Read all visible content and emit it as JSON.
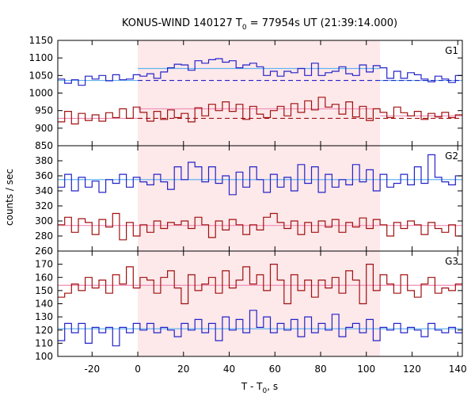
{
  "chart_data": {
    "type": "line",
    "title": "KONUS-WIND 140127 T",
    "title_sub": "0",
    "title_rest": " = 77954s UT (21:39:14.000)",
    "xlabel": "T - T",
    "xlabel_sub": "0",
    "xlabel_rest": ", s",
    "ylabel": "counts / sec",
    "xlim": [
      -35,
      142
    ],
    "xticks": [
      -20,
      0,
      20,
      40,
      60,
      80,
      100,
      120,
      140
    ],
    "xtick_labels": [
      "-20",
      "0",
      "20",
      "40",
      "60",
      "80",
      "100",
      "120",
      "140"
    ],
    "interval": [
      0,
      106
    ],
    "colors": {
      "blue": "#2323c8",
      "red": "#a01010",
      "light_blue": "#64b4f0",
      "pink": "#f08cb4",
      "shade": "#fde8ea"
    },
    "panels": [
      {
        "label": "G1",
        "ylim": [
          850,
          1150
        ],
        "yticks": [
          850,
          900,
          950,
          1000,
          1050,
          1100,
          1150
        ],
        "ytick_labels": [
          "850",
          "900",
          "950",
          "1000",
          "1050",
          "1100",
          "1150"
        ],
        "series": [
          {
            "color": "blue",
            "step": 3,
            "start": -35,
            "values": [
              1040,
              1028,
              1038,
              1022,
              1048,
              1040,
              1050,
              1035,
              1052,
              1038,
              1040,
              1052,
              1048,
              1055,
              1042,
              1060,
              1072,
              1082,
              1080,
              1065,
              1092,
              1085,
              1095,
              1098,
              1088,
              1092,
              1072,
              1080,
              1085,
              1075,
              1050,
              1062,
              1048,
              1062,
              1058,
              1070,
              1050,
              1085,
              1050,
              1058,
              1062,
              1075,
              1055,
              1050,
              1080,
              1060,
              1078,
              1072,
              1042,
              1062,
              1042,
              1058,
              1052,
              1040,
              1032,
              1048,
              1040,
              1030,
              1050,
              1035
            ]
          },
          {
            "color": "red",
            "step": 3,
            "start": -35,
            "values": [
              918,
              948,
              912,
              942,
              922,
              938,
              920,
              944,
              930,
              955,
              928,
              960,
              945,
              920,
              948,
              925,
              952,
              930,
              942,
              918,
              958,
              935,
              968,
              950,
              975,
              948,
              968,
              925,
              962,
              940,
              930,
              950,
              962,
              935,
              970,
              945,
              978,
              952,
              988,
              960,
              968,
              940,
              975,
              932,
              962,
              922,
              955,
              945,
              930,
              960,
              944,
              935,
              948,
              925,
              942,
              932,
              945,
              930,
              938,
              925
            ]
          }
        ],
        "background_levels": [
          {
            "color": "light_blue",
            "style": "solid",
            "x": [
              -35,
              0
            ],
            "y": 1036
          },
          {
            "color": "light_blue",
            "style": "solid",
            "x": [
              0,
              106
            ],
            "y": 1070
          },
          {
            "color": "light_blue",
            "style": "solid",
            "x": [
              106,
              142
            ],
            "y": 1036
          },
          {
            "color": "blue",
            "style": "dashed",
            "x": [
              0,
              142
            ],
            "y": 1036
          },
          {
            "color": "pink",
            "style": "solid",
            "x": [
              -35,
              0
            ],
            "y": 928
          },
          {
            "color": "pink",
            "style": "solid",
            "x": [
              0,
              106
            ],
            "y": 955
          },
          {
            "color": "pink",
            "style": "solid",
            "x": [
              106,
              142
            ],
            "y": 935
          },
          {
            "color": "red",
            "style": "dashed",
            "x": [
              0,
              142
            ],
            "y": 928
          }
        ]
      },
      {
        "label": "G2",
        "ylim": [
          260,
          400
        ],
        "yticks": [
          260,
          280,
          300,
          320,
          340,
          360,
          380
        ],
        "ytick_labels": [
          "260",
          "280",
          "300",
          "320",
          "340",
          "360",
          "380"
        ],
        "series": [
          {
            "color": "blue",
            "step": 3,
            "start": -35,
            "values": [
              345,
              362,
              340,
              358,
              345,
              353,
              338,
              355,
              350,
              362,
              345,
              358,
              352,
              348,
              362,
              352,
              342,
              372,
              355,
              378,
              372,
              352,
              372,
              350,
              360,
              335,
              365,
              345,
              372,
              355,
              338,
              362,
              345,
              358,
              340,
              375,
              350,
              372,
              338,
              362,
              345,
              355,
              348,
              375,
              352,
              368,
              340,
              362,
              345,
              350,
              362,
              348,
              372,
              350,
              388,
              358,
              352,
              348,
              360,
              340
            ]
          },
          {
            "color": "red",
            "step": 3,
            "start": -35,
            "values": [
              295,
              305,
              285,
              303,
              298,
              282,
              302,
              292,
              310,
              275,
              298,
              280,
              295,
              285,
              300,
              290,
              298,
              295,
              300,
              290,
              305,
              295,
              278,
              300,
              288,
              302,
              295,
              282,
              295,
              288,
              305,
              310,
              298,
              290,
              300,
              282,
              298,
              285,
              300,
              292,
              302,
              285,
              298,
              292,
              304,
              290,
              302,
              295,
              280,
              298,
              290,
              300,
              295,
              282,
              298,
              290,
              285,
              295,
              280,
              292
            ]
          }
        ],
        "background_levels": [
          {
            "color": "light_blue",
            "style": "solid",
            "x": [
              -35,
              142
            ],
            "y": 355
          },
          {
            "color": "pink",
            "style": "solid",
            "x": [
              -35,
              142
            ],
            "y": 294
          }
        ]
      },
      {
        "label": "G3",
        "ylim": [
          100,
          180
        ],
        "yticks": [
          100,
          110,
          120,
          130,
          140,
          150,
          160,
          170
        ],
        "ytick_labels": [
          "100",
          "110",
          "120",
          "130",
          "140",
          "150",
          "160",
          "170"
        ],
        "series": [
          {
            "color": "red",
            "step": 3,
            "start": -35,
            "values": [
              145,
              148,
              155,
              150,
              160,
              152,
              158,
              148,
              162,
              155,
              168,
              152,
              160,
              158,
              148,
              160,
              165,
              152,
              140,
              162,
              150,
              155,
              160,
              148,
              165,
              152,
              158,
              168,
              155,
              162,
              150,
              170,
              158,
              140,
              162,
              150,
              158,
              145,
              158,
              152,
              160,
              148,
              165,
              158,
              140,
              170,
              150,
              162,
              155,
              148,
              162,
              150,
              145,
              155,
              160,
              148,
              152,
              150,
              155,
              148
            ]
          },
          {
            "color": "blue",
            "step": 3,
            "start": -35,
            "values": [
              112,
              125,
              118,
              125,
              110,
              122,
              118,
              122,
              108,
              122,
              118,
              125,
              120,
              125,
              118,
              122,
              120,
              115,
              125,
              120,
              128,
              118,
              125,
              112,
              130,
              120,
              128,
              118,
              135,
              122,
              130,
              118,
              125,
              120,
              128,
              115,
              130,
              118,
              125,
              120,
              132,
              115,
              122,
              125,
              118,
              128,
              112,
              122,
              120,
              125,
              118,
              122,
              120,
              115,
              125,
              120,
              118,
              122,
              118,
              125
            ]
          }
        ],
        "background_levels": [
          {
            "color": "light_blue",
            "style": "solid",
            "x": [
              -35,
              142
            ],
            "y": 121
          },
          {
            "color": "pink",
            "style": "solid",
            "x": [
              -35,
              142
            ],
            "y": 154
          }
        ]
      }
    ]
  }
}
